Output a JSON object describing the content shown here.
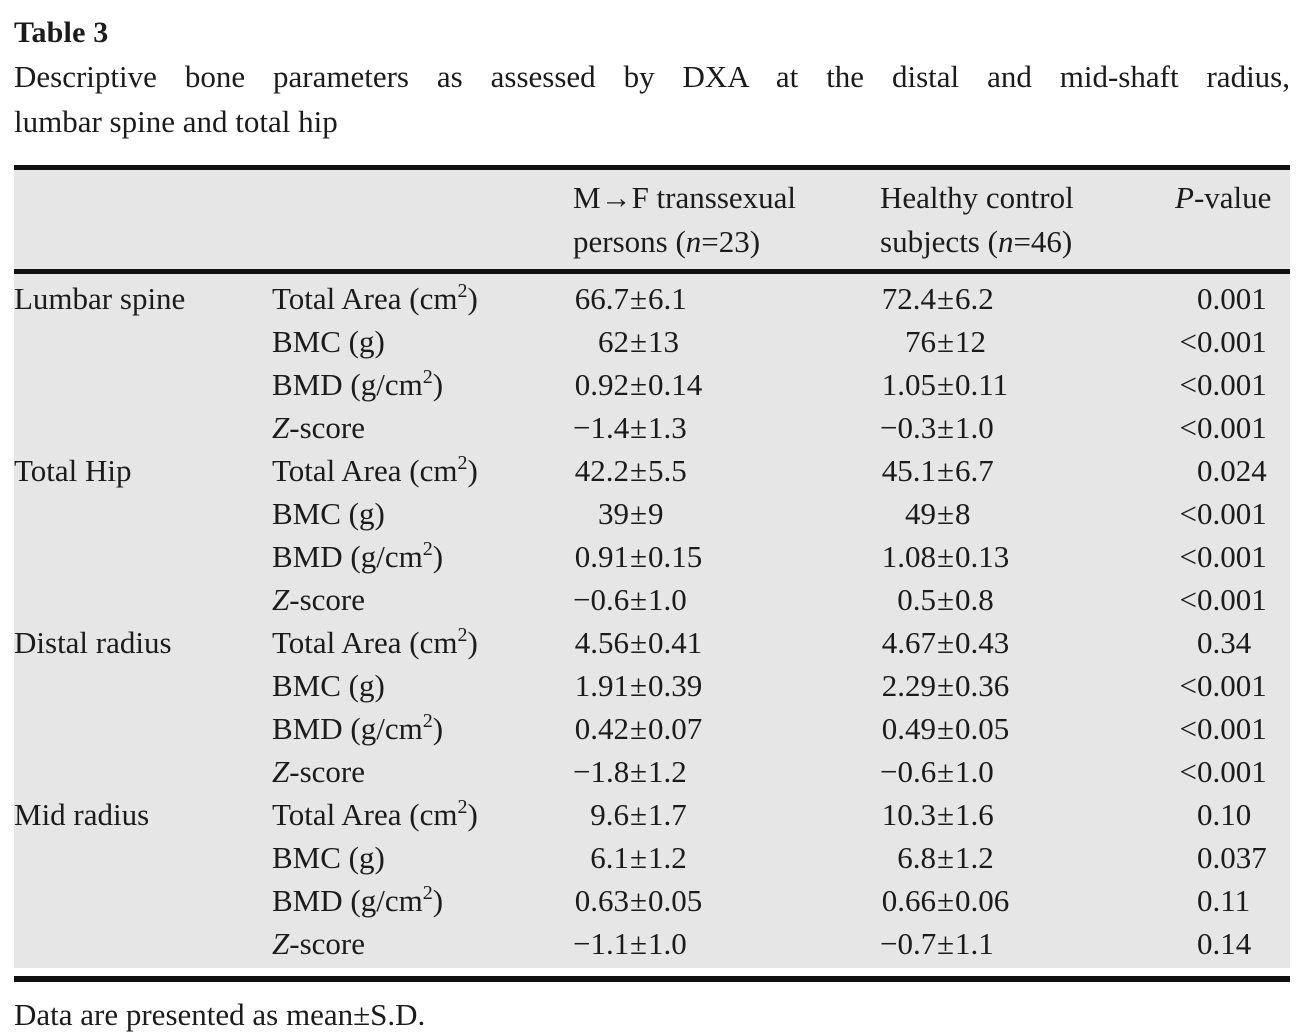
{
  "title": "Table 3",
  "caption": {
    "line1": "Descriptive bone parameters as assessed by DXA at the distal and mid-shaft radius,",
    "line2": "lumbar spine and total hip"
  },
  "header": {
    "mf": {
      "line1": "M→F transsexual",
      "line2_pre": "persons (",
      "n": "n",
      "line2_post": "=23)"
    },
    "hc": {
      "line1": "Healthy control",
      "line2_pre": "subjects (",
      "n": "n",
      "line2_post": "=46)"
    },
    "p": {
      "italic": "P",
      "rest": "-value"
    }
  },
  "table": {
    "pm": "±",
    "lt": "<",
    "rows": [
      {
        "section": "Lumbar spine",
        "param": [
          {
            "t": "Total Area (cm"
          },
          {
            "t": "2",
            "sup": true
          },
          {
            "t": ")"
          }
        ],
        "mf": {
          "mean": "66.7",
          "sd": "6.1"
        },
        "hc": {
          "mean": "72.4",
          "sd": "6.2"
        },
        "p": {
          "prefix": "",
          "value": "0.001"
        }
      },
      {
        "section": "",
        "param": [
          {
            "t": "BMC (g)"
          }
        ],
        "mf": {
          "mean": "62",
          "sd": "13"
        },
        "hc": {
          "mean": "76",
          "sd": "12"
        },
        "p": {
          "prefix": "<",
          "value": "0.001"
        }
      },
      {
        "section": "",
        "param": [
          {
            "t": "BMD (g/cm"
          },
          {
            "t": "2",
            "sup": true
          },
          {
            "t": ")"
          }
        ],
        "mf": {
          "mean": "0.92",
          "sd": "0.14"
        },
        "hc": {
          "mean": "1.05",
          "sd": "0.11"
        },
        "p": {
          "prefix": "<",
          "value": "0.001"
        }
      },
      {
        "section": "",
        "param": [
          {
            "t": "Z",
            "i": true
          },
          {
            "t": "-score"
          }
        ],
        "mf": {
          "mean": "−1.4",
          "sd": "1.3"
        },
        "hc": {
          "mean": "−0.3",
          "sd": "1.0"
        },
        "p": {
          "prefix": "<",
          "value": "0.001"
        }
      },
      {
        "section": "Total Hip",
        "param": [
          {
            "t": "Total Area (cm"
          },
          {
            "t": "2",
            "sup": true
          },
          {
            "t": ")"
          }
        ],
        "mf": {
          "mean": "42.2",
          "sd": "5.5"
        },
        "hc": {
          "mean": "45.1",
          "sd": "6.7"
        },
        "p": {
          "prefix": "",
          "value": "0.024"
        }
      },
      {
        "section": "",
        "param": [
          {
            "t": "BMC (g)"
          }
        ],
        "mf": {
          "mean": "39",
          "sd": "9"
        },
        "hc": {
          "mean": "49",
          "sd": "8"
        },
        "p": {
          "prefix": "<",
          "value": "0.001"
        }
      },
      {
        "section": "",
        "param": [
          {
            "t": "BMD (g/cm"
          },
          {
            "t": "2",
            "sup": true
          },
          {
            "t": ")"
          }
        ],
        "mf": {
          "mean": "0.91",
          "sd": "0.15"
        },
        "hc": {
          "mean": "1.08",
          "sd": "0.13"
        },
        "p": {
          "prefix": "<",
          "value": "0.001"
        }
      },
      {
        "section": "",
        "param": [
          {
            "t": "Z",
            "i": true
          },
          {
            "t": "-score"
          }
        ],
        "mf": {
          "mean": "−0.6",
          "sd": "1.0"
        },
        "hc": {
          "mean": "0.5",
          "sd": "0.8"
        },
        "p": {
          "prefix": "<",
          "value": "0.001"
        }
      },
      {
        "section": "Distal radius",
        "param": [
          {
            "t": "Total Area (cm"
          },
          {
            "t": "2",
            "sup": true
          },
          {
            "t": ")"
          }
        ],
        "mf": {
          "mean": "4.56",
          "sd": "0.41"
        },
        "hc": {
          "mean": "4.67",
          "sd": "0.43"
        },
        "p": {
          "prefix": "",
          "value": "0.34"
        }
      },
      {
        "section": "",
        "param": [
          {
            "t": "BMC (g)"
          }
        ],
        "mf": {
          "mean": "1.91",
          "sd": "0.39"
        },
        "hc": {
          "mean": "2.29",
          "sd": "0.36"
        },
        "p": {
          "prefix": "<",
          "value": "0.001"
        }
      },
      {
        "section": "",
        "param": [
          {
            "t": "BMD (g/cm"
          },
          {
            "t": "2",
            "sup": true
          },
          {
            "t": ")"
          }
        ],
        "mf": {
          "mean": "0.42",
          "sd": "0.07"
        },
        "hc": {
          "mean": "0.49",
          "sd": "0.05"
        },
        "p": {
          "prefix": "<",
          "value": "0.001"
        }
      },
      {
        "section": "",
        "param": [
          {
            "t": "Z",
            "i": true
          },
          {
            "t": "-score"
          }
        ],
        "mf": {
          "mean": "−1.8",
          "sd": "1.2"
        },
        "hc": {
          "mean": "−0.6",
          "sd": "1.0"
        },
        "p": {
          "prefix": "<",
          "value": "0.001"
        }
      },
      {
        "section": "Mid radius",
        "param": [
          {
            "t": "Total Area (cm"
          },
          {
            "t": "2",
            "sup": true
          },
          {
            "t": ")"
          }
        ],
        "mf": {
          "mean": "9.6",
          "sd": "1.7"
        },
        "hc": {
          "mean": "10.3",
          "sd": "1.6"
        },
        "p": {
          "prefix": "",
          "value": "0.10"
        }
      },
      {
        "section": "",
        "param": [
          {
            "t": "BMC (g)"
          }
        ],
        "mf": {
          "mean": "6.1",
          "sd": "1.2"
        },
        "hc": {
          "mean": "6.8",
          "sd": "1.2"
        },
        "p": {
          "prefix": "",
          "value": "0.037"
        }
      },
      {
        "section": "",
        "param": [
          {
            "t": "BMD (g/cm"
          },
          {
            "t": "2",
            "sup": true
          },
          {
            "t": ")"
          }
        ],
        "mf": {
          "mean": "0.63",
          "sd": "0.05"
        },
        "hc": {
          "mean": "0.66",
          "sd": "0.06"
        },
        "p": {
          "prefix": "",
          "value": "0.11"
        }
      },
      {
        "section": "",
        "param": [
          {
            "t": "Z",
            "i": true
          },
          {
            "t": "-score"
          }
        ],
        "mf": {
          "mean": "−1.1",
          "sd": "1.0"
        },
        "hc": {
          "mean": "−0.7",
          "sd": "1.1"
        },
        "p": {
          "prefix": "",
          "value": "0.14"
        }
      }
    ]
  },
  "footnote": "Data are presented as mean±S.D.",
  "colors": {
    "table_bg": "#e6e6e6",
    "rule": "#101010",
    "text": "#1b1b1b"
  }
}
